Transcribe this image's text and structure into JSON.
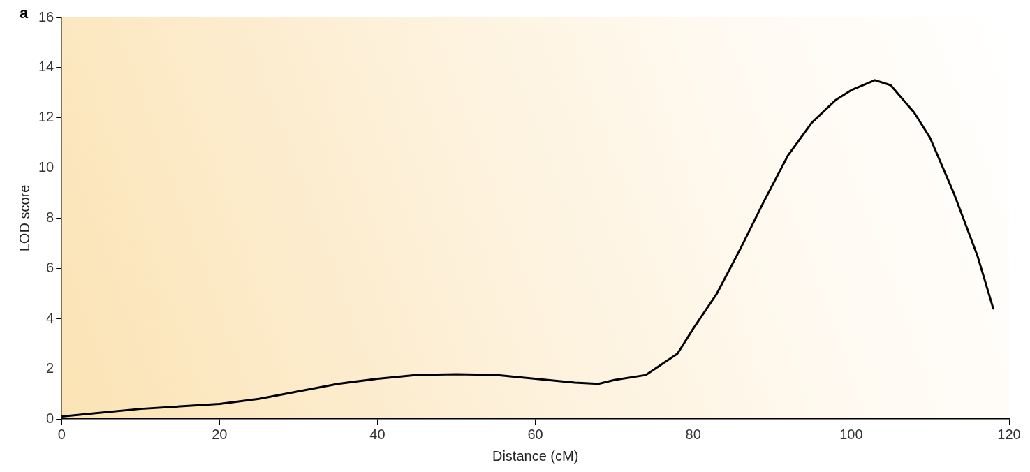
{
  "chart_data": {
    "type": "line",
    "xlabel": "Distance (cM)",
    "ylabel": "LOD score",
    "annotations": [
      "a"
    ],
    "xlim": [
      0,
      120
    ],
    "xticks": [
      0,
      20,
      40,
      60,
      80,
      100,
      120
    ],
    "ylim": [
      0,
      16
    ],
    "yticks": [
      0,
      2,
      4,
      6,
      8,
      10,
      12,
      14,
      16
    ],
    "grid": false,
    "legend": false,
    "marker": "none",
    "line_style": "solid",
    "series": [
      {
        "color": "#000000",
        "x": [
          0,
          5,
          10,
          15,
          20,
          25,
          30,
          35,
          40,
          45,
          50,
          55,
          60,
          65,
          68,
          70,
          74,
          78,
          80,
          83,
          86,
          89,
          92,
          95,
          98,
          100,
          103,
          105,
          108,
          110,
          113,
          116,
          118
        ],
        "values": [
          0.1,
          0.25,
          0.4,
          0.5,
          0.6,
          0.8,
          1.1,
          1.4,
          1.6,
          1.75,
          1.78,
          1.75,
          1.6,
          1.45,
          1.4,
          1.55,
          1.75,
          2.6,
          3.6,
          5.0,
          6.8,
          8.7,
          10.5,
          11.8,
          12.7,
          13.1,
          13.5,
          13.3,
          12.2,
          11.2,
          9.0,
          6.5,
          4.4
        ]
      }
    ]
  }
}
